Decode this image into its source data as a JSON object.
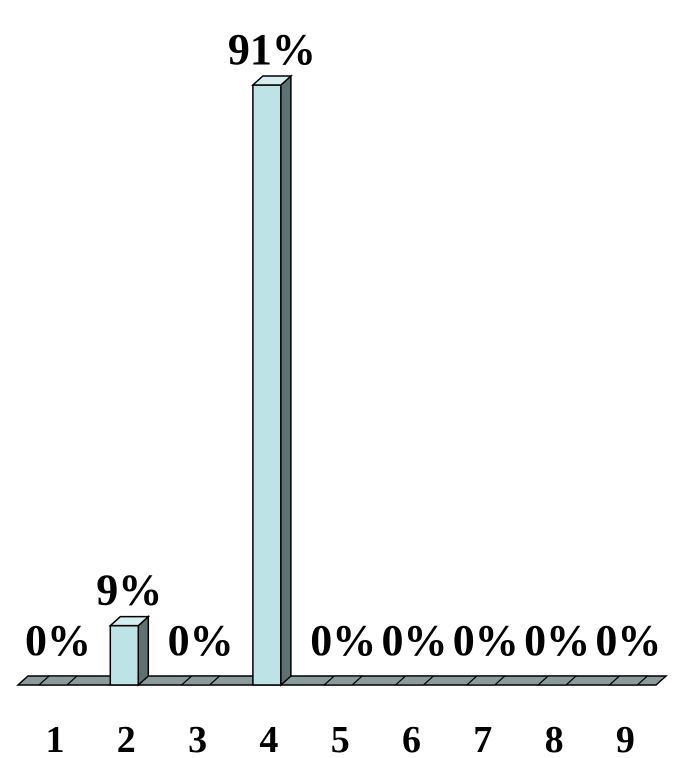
{
  "chart_data": {
    "type": "bar",
    "style": "3d",
    "categories": [
      "1",
      "2",
      "3",
      "4",
      "5",
      "6",
      "7",
      "8",
      "9"
    ],
    "values": [
      0,
      9,
      0,
      91,
      0,
      0,
      0,
      0,
      0
    ],
    "data_labels": [
      "0%",
      "9%",
      "0%",
      "91%",
      "0%",
      "0%",
      "0%",
      "0%",
      "0%"
    ],
    "title": "",
    "xlabel": "",
    "ylabel": "",
    "ylim": [
      0,
      91
    ],
    "grid": false,
    "legend": "none",
    "colors": {
      "bar_front": "#bde3e7",
      "bar_top": "#d4eef1",
      "bar_side": "#5f7273",
      "floor": "#8b9b9d",
      "outline": "#000000"
    }
  }
}
